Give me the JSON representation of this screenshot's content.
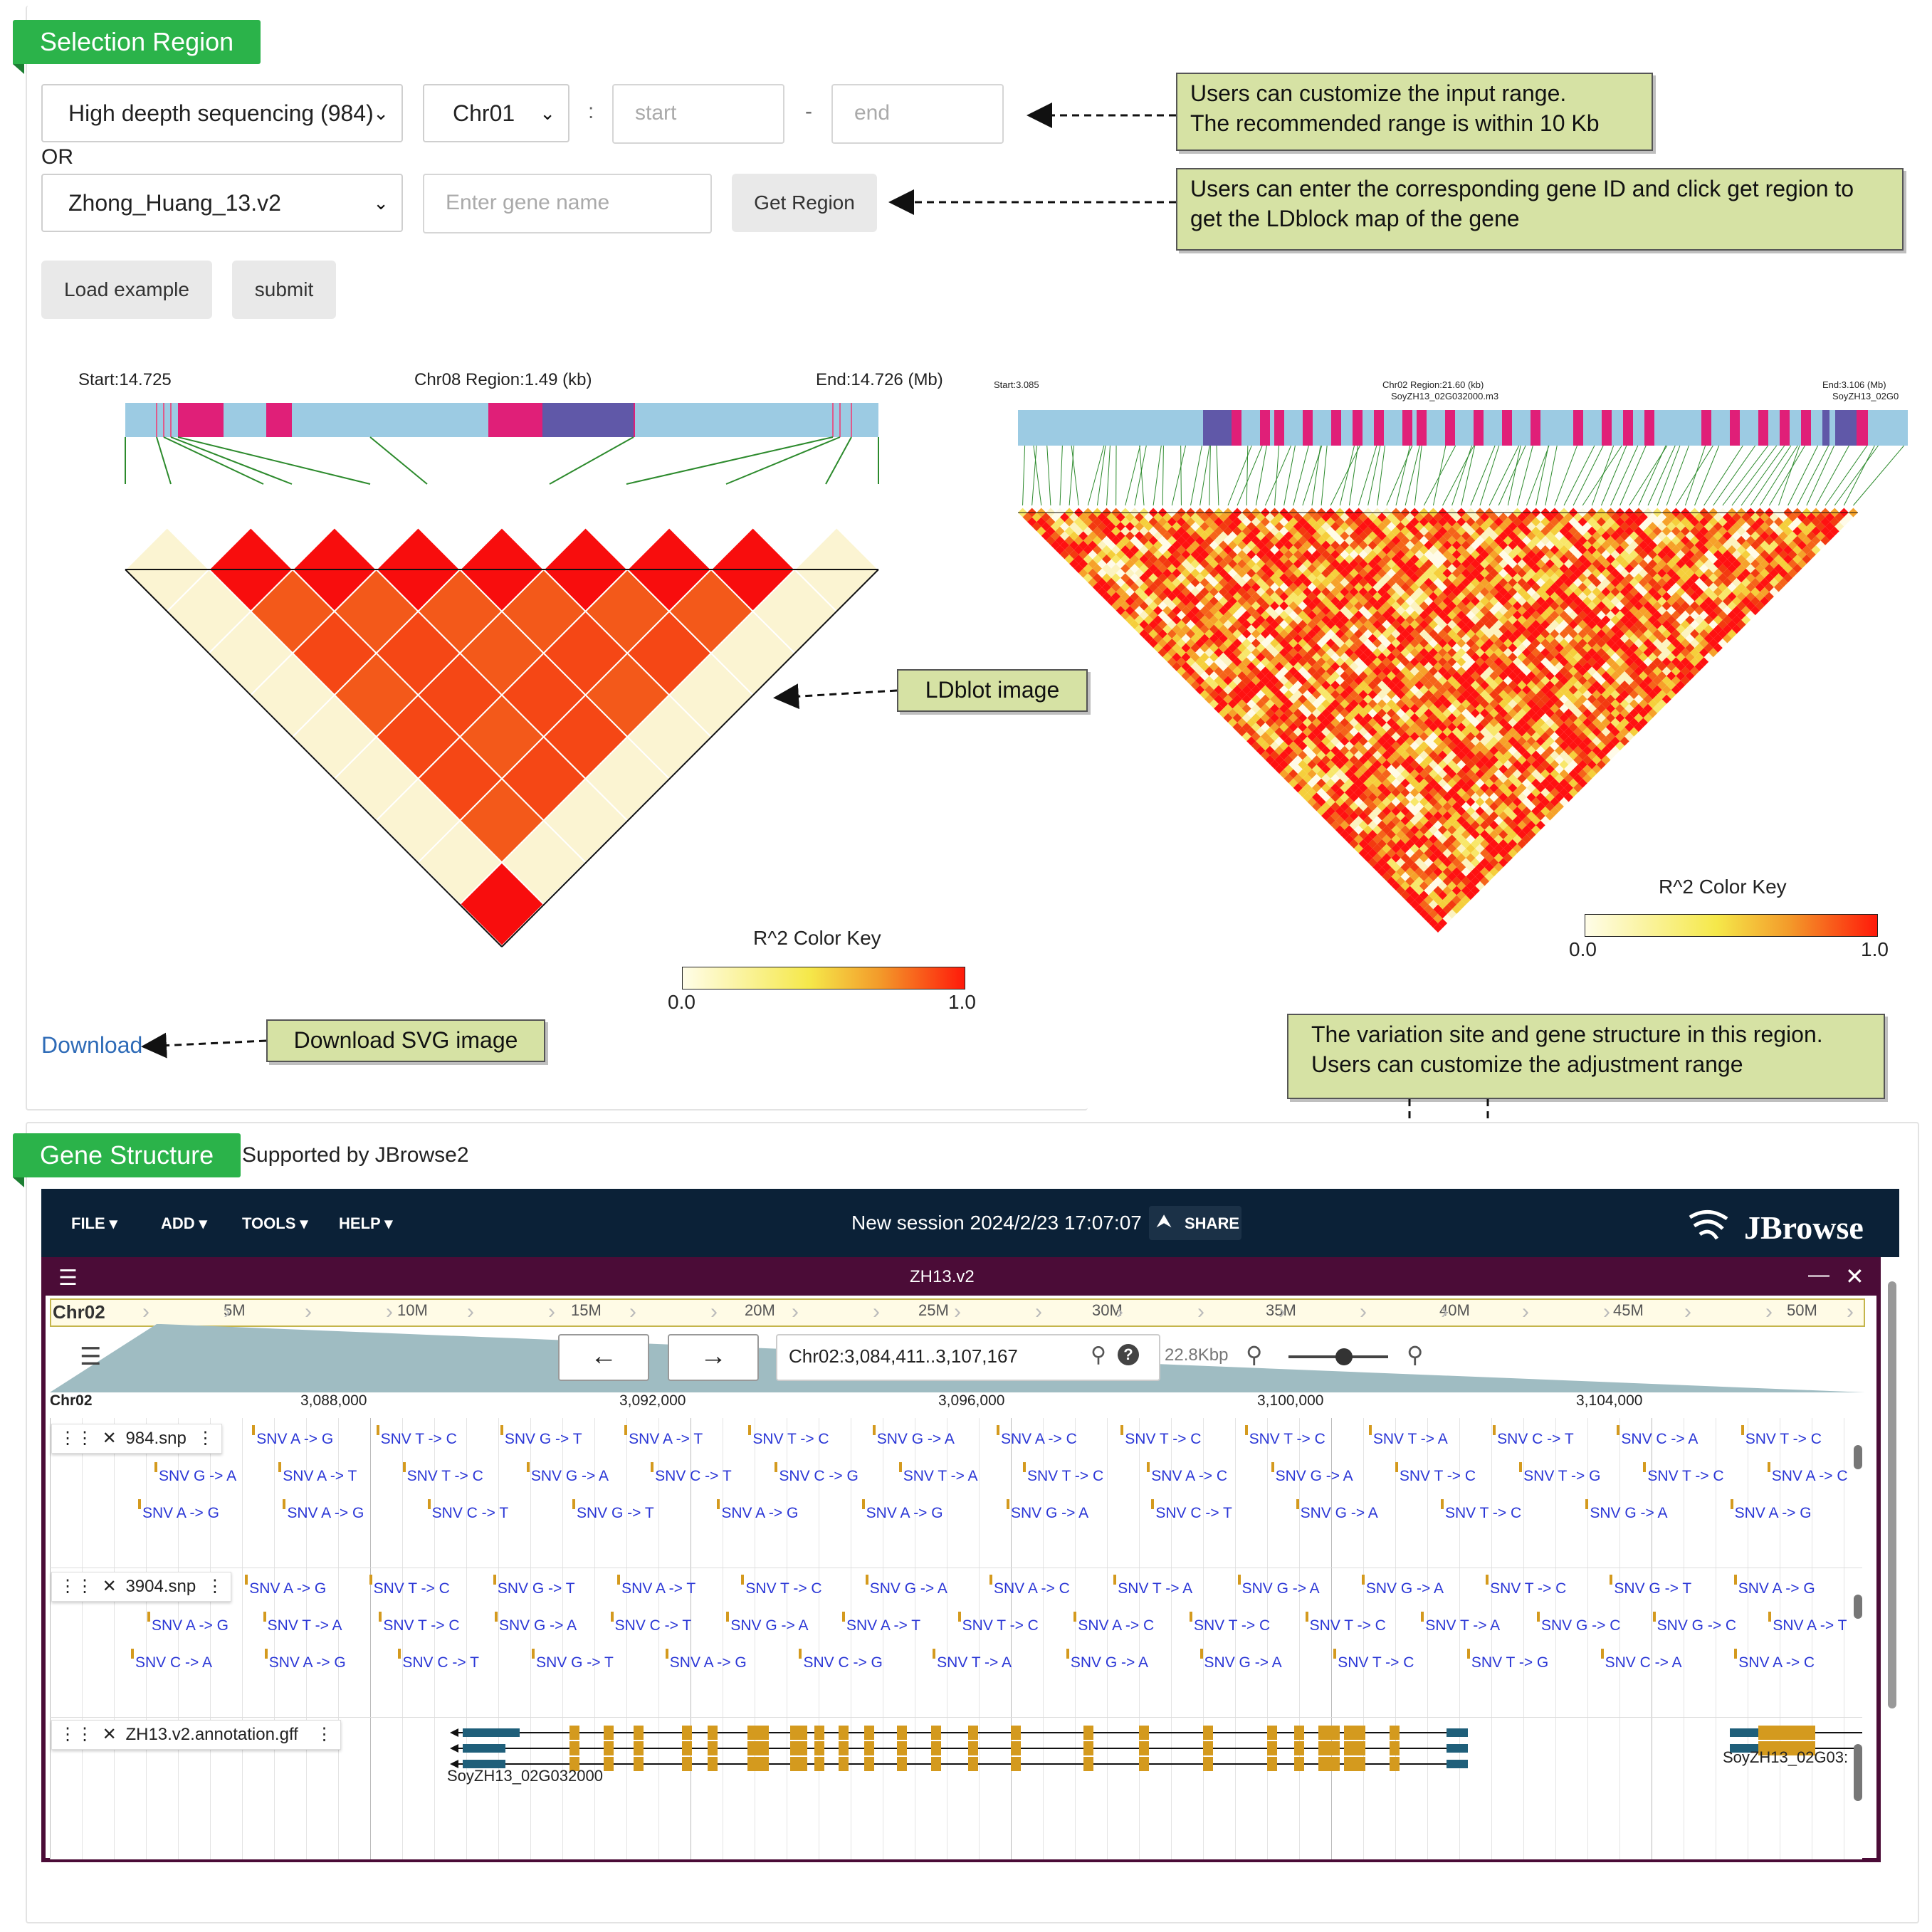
{
  "selection": {
    "tag": "Selection Region",
    "dataset": "High deepth sequencing (984)",
    "chromosome": "Chr01",
    "colon": ":",
    "dash": "-",
    "start_placeholder": "start",
    "end_placeholder": "end",
    "or": "OR",
    "genome": "Zhong_Huang_13.v2",
    "gene_placeholder": "Enter gene name",
    "get_region": "Get Region",
    "load_example": "Load example",
    "submit": "submit",
    "download": "Download"
  },
  "ld_left": {
    "start": "Start:14.725",
    "region": "Chr08 Region:1.49 (kb)",
    "end": "End:14.726 (Mb)",
    "key_title": "R^2 Color Key",
    "key_min": "0.0",
    "key_max": "1.0"
  },
  "ld_right": {
    "start": "Start:3.085",
    "region": "Chr02 Region:21.60 (kb)",
    "gene": "SoyZH13_02G032000.m3",
    "end": "End:3.106 (Mb)",
    "gene_right": "SoyZH13_02G0",
    "key_title": "R^2 Color Key",
    "key_min": "0.0",
    "key_max": "1.0"
  },
  "callouts": {
    "range": "Users can customize the input range.\nThe recommended range is within 10 Kb",
    "gene": "Users can enter the corresponding gene ID and click get region to get the LDblock map of the gene",
    "ldblot": "LDblot image",
    "download": "Download SVG image",
    "variation": "The variation site and gene structure in this region.\nUsers can customize the adjustment range"
  },
  "gene_structure": {
    "tag": "Gene Structure",
    "supported": "Supported by JBrowse2"
  },
  "jbrowse": {
    "menus": [
      "FILE",
      "ADD",
      "TOOLS",
      "HELP"
    ],
    "session": "New session 2024/2/23 17:07:07",
    "share": "SHARE",
    "logo": "JBrowse",
    "view_title": "ZH13.v2",
    "overview_chr": "Chr02",
    "overview_ticks": [
      "5M",
      "10M",
      "15M",
      "20M",
      "25M",
      "30M",
      "35M",
      "40M",
      "45M",
      "50M"
    ],
    "locus": "Chr02:3,084,411..3,107,167",
    "bp_width": "22.8Kbp",
    "ruler_chr": "Chr02",
    "ruler_ticks": [
      "3,088,000",
      "3,092,000",
      "3,096,000",
      "3,100,000",
      "3,104,000"
    ],
    "tracks": [
      "984.snp",
      "3904.snp",
      "ZH13.v2.annotation.gff"
    ],
    "gene1": "SoyZH13_02G032000",
    "gene2": "SoyZH13_02G03:",
    "snp_rows_984": [
      [
        "SNV T -> A",
        "SNV A -> G",
        "SNV T -> C",
        "SNV G -> T",
        "SNV A -> T",
        "SNV T -> C",
        "SNV G -> A",
        "SNV A -> C",
        "SNV T -> C",
        "SNV T -> C",
        "SNV T -> A",
        "SNV C -> T",
        "SNV C -> A",
        "SNV T -> C"
      ],
      [
        "SNV G -> A",
        "SNV A -> T",
        "SNV T -> C",
        "SNV G -> A",
        "SNV C -> T",
        "SNV C -> G",
        "SNV T -> A",
        "SNV T -> C",
        "SNV A -> C",
        "SNV G -> A",
        "SNV T -> C",
        "SNV T -> G",
        "SNV T -> C",
        "SNV A -> C"
      ],
      [
        "SNV A -> G",
        "SNV A -> G",
        "SNV C -> T",
        "SNV G -> T",
        "SNV A -> G",
        "SNV A -> G",
        "SNV G -> A",
        "SNV C -> T",
        "SNV G -> A",
        "SNV T -> C",
        "SNV G -> A",
        "SNV A -> G"
      ]
    ],
    "snp_rows_3904": [
      [
        "SNV A -> T",
        "SNV A -> G",
        "SNV T -> C",
        "SNV G -> T",
        "SNV A -> T",
        "SNV T -> C",
        "SNV G -> A",
        "SNV A -> C",
        "SNV T -> A",
        "SNV G -> A",
        "SNV G -> A",
        "SNV T -> C",
        "SNV G -> T",
        "SNV A -> G"
      ],
      [
        "SNV A -> G",
        "SNV T -> A",
        "SNV T -> C",
        "SNV G -> A",
        "SNV C -> T",
        "SNV G -> A",
        "SNV A -> T",
        "SNV T -> C",
        "SNV A -> C",
        "SNV T -> C",
        "SNV T -> C",
        "SNV T -> A",
        "SNV G -> C",
        "SNV G -> C",
        "SNV A -> T"
      ],
      [
        "SNV C -> A",
        "SNV A -> G",
        "SNV C -> T",
        "SNV G -> T",
        "SNV A -> G",
        "SNV C -> G",
        "SNV T -> A",
        "SNV G -> A",
        "SNV G -> A",
        "SNV T -> C",
        "SNV T -> G",
        "SNV C -> A",
        "SNV A -> C"
      ]
    ]
  },
  "colors": {
    "green_tag": "#2bb34a",
    "callout_bg": "#d6e2a4",
    "jbrowse_bar": "#0b2137",
    "view_border": "#4b0c37",
    "snv_text": "#2a36d6",
    "gene_exon": "#d49a1e",
    "gene_utr": "#1f5f7a"
  }
}
